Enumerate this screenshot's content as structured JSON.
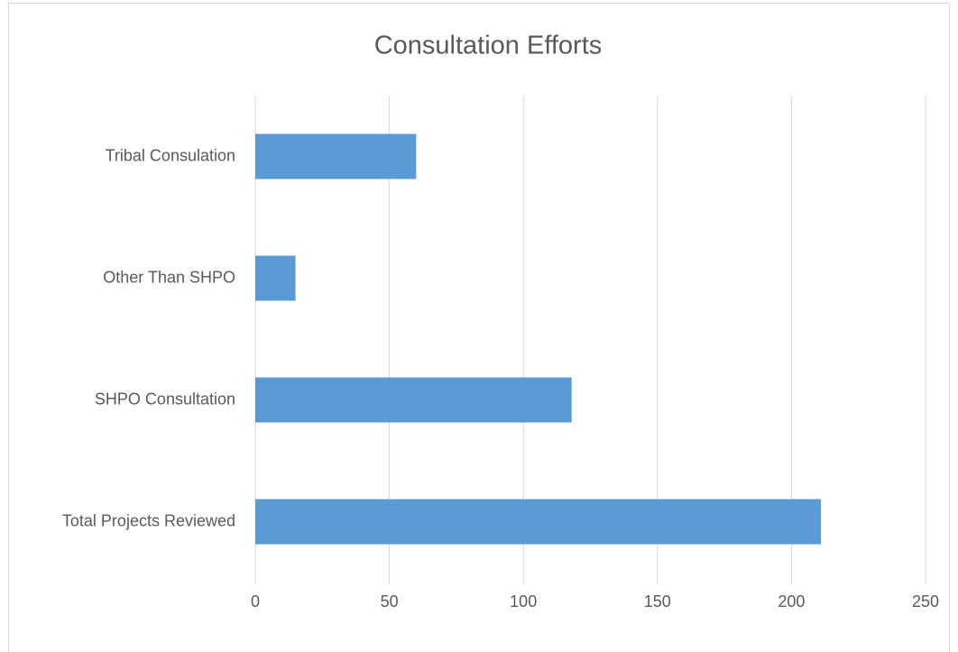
{
  "chart_data": {
    "type": "bar",
    "orientation": "horizontal",
    "title": "Consultation Efforts",
    "categories": [
      "Tribal Consulation",
      "Other Than SHPO",
      "SHPO Consultation",
      "Total Projects Reviewed"
    ],
    "values": [
      60,
      15,
      118,
      211
    ],
    "color": "#5b9bd5",
    "xlim": [
      0,
      250
    ],
    "xticks": [
      0,
      50,
      100,
      150,
      200,
      250
    ],
    "grid": true
  }
}
